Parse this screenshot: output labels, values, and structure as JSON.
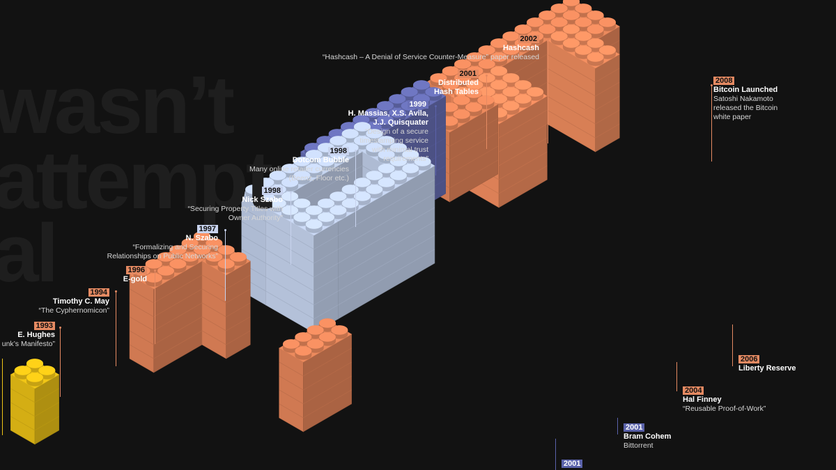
{
  "background_words": [
    "wasn’t",
    "attempt",
    "al"
  ],
  "colors": {
    "orange": "#ec8a5d",
    "periwinkle": "#6970b8",
    "lightblue": "#c6d5f0",
    "yellow": "#f1c617",
    "year_orange": "#e58a62",
    "year_blue": "#c8d3ee",
    "year_indigo": "#5a62aa"
  },
  "events": [
    {
      "year": "2002",
      "title": "Hashcash",
      "desc": [
        "“Hashcash – A Denial of Service Counter-Measure” paper released"
      ],
      "tone": "orange"
    },
    {
      "year": "2001",
      "title": "Distributed\nHash Tables",
      "desc": [],
      "tone": "orange"
    },
    {
      "year": "1999",
      "title": "H. Massias, X.S. Avila,\nJ.J. Quisquater",
      "desc": [
        "“Design of a secure",
        "timestamping service",
        "with minimal trust",
        "requirements”"
      ],
      "tone": "indigo"
    },
    {
      "year": "1998",
      "title": "Dotcom Bubble",
      "desc": [
        "Many online retailer currencies",
        "(Beenz, Floor etc.)"
      ],
      "tone": "blue"
    },
    {
      "year": "1998",
      "title": "Nick Szabo",
      "desc": [
        "“Securing Property Titles with",
        "Owner Authority”"
      ],
      "tone": "blue"
    },
    {
      "year": "1997",
      "title": "N. Szabo",
      "desc": [
        "“Formalizing and Securing",
        "Relationships on Public Networks”"
      ],
      "tone": "blue"
    },
    {
      "year": "1996",
      "title": "E-gold",
      "desc": [],
      "tone": "orange"
    },
    {
      "year": "1994",
      "title": "Timothy C. May",
      "desc": [
        "“The Cyphernomicon”"
      ],
      "tone": "orange"
    },
    {
      "year": "1993",
      "title": "E. Hughes",
      "desc": [
        "unk’s Manifesto”"
      ],
      "tone": "orange"
    },
    {
      "year": "2008",
      "title": "Bitcoin Launched",
      "desc": [
        "Satoshi Nakamoto",
        "released the Bitcoin",
        "white paper"
      ],
      "tone": "orange"
    },
    {
      "year": "2006",
      "title": "Liberty Reserve",
      "desc": [],
      "tone": "orange"
    },
    {
      "year": "2004",
      "title": "Hal Finney",
      "desc": [
        "“Reusable Proof-of-Work”"
      ],
      "tone": "orange"
    },
    {
      "year": "2001",
      "title": "Bram Cohem",
      "desc": [
        "Bittorrent"
      ],
      "tone": "indigo"
    },
    {
      "year": "2001",
      "title": "",
      "desc": [],
      "tone": "indigo"
    }
  ]
}
